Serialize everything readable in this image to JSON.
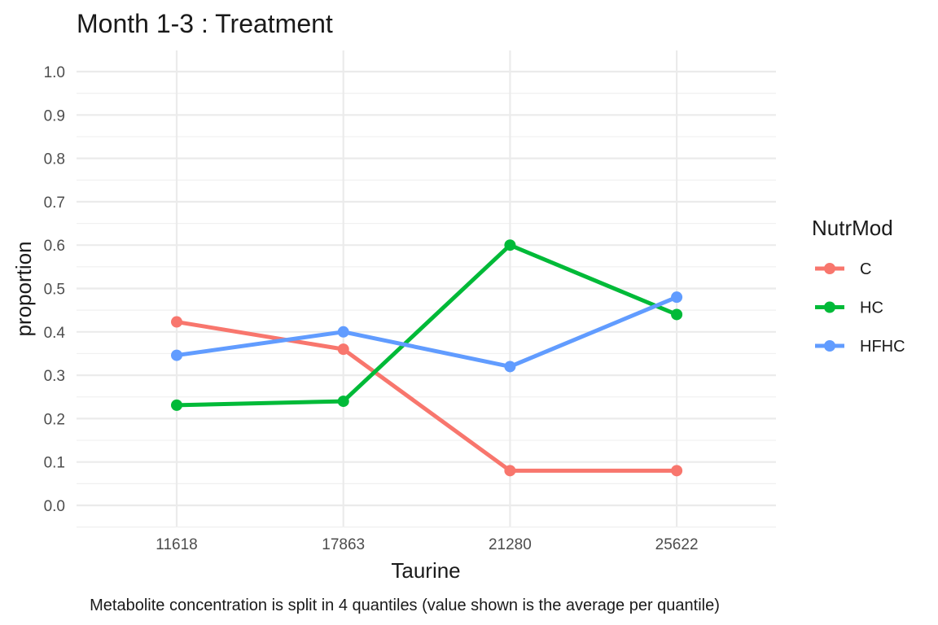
{
  "chart_data": {
    "type": "line",
    "title": "Month 1-3 : Treatment",
    "xlabel": "Taurine",
    "ylabel": "proportion",
    "caption": "Metabolite concentration is split in 4 quantiles (value shown is the average per quantile)",
    "categories": [
      "11618",
      "17863",
      "21280",
      "25622"
    ],
    "ylim": [
      0,
      1
    ],
    "yticks": [
      "0.0",
      "0.1",
      "0.2",
      "0.3",
      "0.4",
      "0.5",
      "0.6",
      "0.7",
      "0.8",
      "0.9",
      "1.0"
    ],
    "grid": true,
    "legend": {
      "title": "NutrMod",
      "position": "right"
    },
    "series": [
      {
        "name": "C",
        "color": "#F8766D",
        "values": [
          0.423,
          0.36,
          0.08,
          0.08
        ]
      },
      {
        "name": "HC",
        "color": "#00BA38",
        "values": [
          0.231,
          0.24,
          0.6,
          0.44
        ]
      },
      {
        "name": "HFHC",
        "color": "#619CFF",
        "values": [
          0.346,
          0.4,
          0.32,
          0.48
        ]
      }
    ]
  }
}
